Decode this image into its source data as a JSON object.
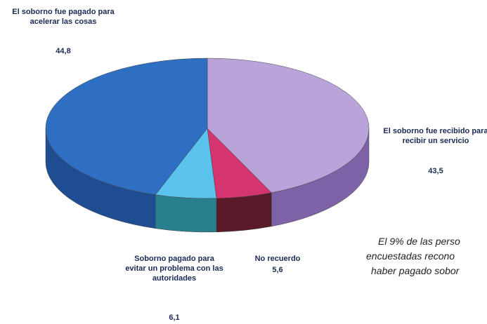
{
  "chart_data": {
    "type": "pie",
    "categories": [
      "El soborno fue recibido para recibir un servicio",
      "No recuerdo",
      "Soborno pagado para evitar un problema con las autoridades",
      "El soborno fue pagado para acelerar las cosas"
    ],
    "values": [
      43.5,
      5.6,
      6.1,
      44.8
    ],
    "value_labels": [
      "43,5",
      "5,6",
      "6,1",
      "44,8"
    ],
    "colors": [
      "#b9a3d9",
      "#d4356e",
      "#5cc3ef",
      "#2e6fc4"
    ],
    "side_colors": [
      "#7d62a8",
      "#5a1a2a",
      "#2a7f8c",
      "#1f4d91"
    ],
    "annotation": [
      "El 9% de las perso",
      "encuestadas recono",
      "haber pagado sobor"
    ]
  }
}
